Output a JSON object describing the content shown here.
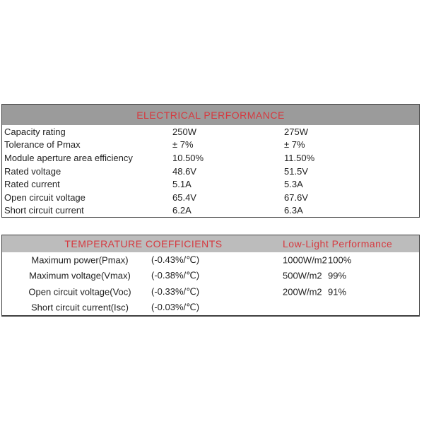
{
  "colors": {
    "header1_bg": "#9b9b9b",
    "header2_bg": "#bcbcbc",
    "accent_red": "#d6393f",
    "border": "#404040",
    "text": "#222222",
    "page_bg": "#ffffff"
  },
  "electrical": {
    "title": "ELECTRICAL PERFORMANCE",
    "rows": [
      {
        "label": "Capacity rating",
        "v1": "250W",
        "v2": "275W"
      },
      {
        "label": "Tolerance of Pmax",
        "v1": "± 7%",
        "v2": "± 7%"
      },
      {
        "label": "Module aperture area efficiency",
        "v1": "10.50%",
        "v2": "11.50%"
      },
      {
        "label": "Rated voltage",
        "v1": "48.6V",
        "v2": "51.5V"
      },
      {
        "label": "Rated current",
        "v1": "5.1A",
        "v2": "5.3A"
      },
      {
        "label": "Open circuit voltage",
        "v1": "65.4V",
        "v2": "67.6V"
      },
      {
        "label": "Short circuit current",
        "v1": "6.2A",
        "v2": "6.3A"
      }
    ]
  },
  "coefficients": {
    "title": "TEMPERATURE COEFFICIENTS",
    "low_light_title": "Low-Light Performance",
    "rows": [
      {
        "label": "Maximum power(Pmax)",
        "value": "(-0.43%/℃)",
        "irradiance": "1000W/m2",
        "performance": "100%"
      },
      {
        "label": "Maximum voltage(Vmax)",
        "value": "(-0.38%/℃)",
        "irradiance": "500W/m2",
        "performance": "99%"
      },
      {
        "label": "Open circuit voltage(Voc)",
        "value": "(-0.33%/℃)",
        "irradiance": "200W/m2",
        "performance": "91%"
      },
      {
        "label": "Short circuit current(Isc)",
        "value": "(-0.03%/℃)",
        "irradiance": "",
        "performance": ""
      }
    ]
  }
}
